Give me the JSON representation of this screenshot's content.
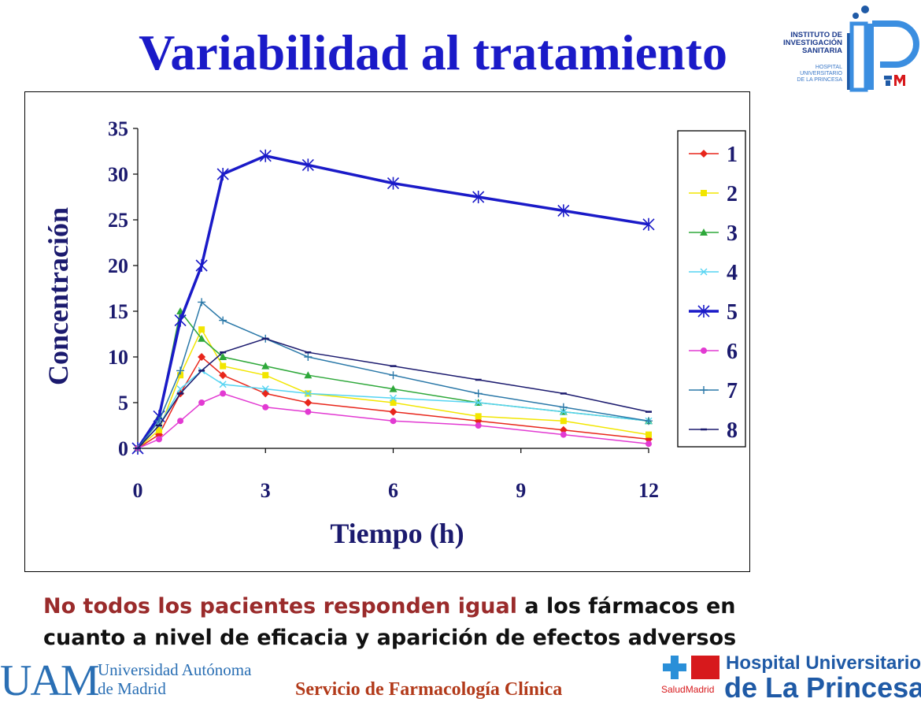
{
  "slide": {
    "title": "Variabilidad al tratamiento",
    "bottom_highlight": "No todos los pacientes responden igual",
    "bottom_rest_1": " a los fármacos en",
    "bottom_line_2": "cuanto a nivel de eficacia y aparición de efectos adversos",
    "footer_center": "Servicio de Farmacología Clínica"
  },
  "logos": {
    "ip_lines": [
      "INSTITUTO DE",
      "INVESTIGACIÓN",
      "SANITARIA"
    ],
    "ip_sub_lines": [
      "HOSPITAL",
      "UNIVERSITARIO",
      "DE LA PRINCESA"
    ],
    "uam_mark": "UAM",
    "uam_line_1": "Universidad Autónoma",
    "uam_line_2": "de Madrid",
    "princesa_line_1": "Hospital Universitario",
    "princesa_line_2": "de La Princesa",
    "salud_madrid": "SaludMadrid"
  },
  "chart_data": {
    "type": "line",
    "title": "",
    "xlabel": "Tiempo (h)",
    "ylabel": "Concentración",
    "xlim": [
      0,
      12
    ],
    "ylim": [
      0,
      35
    ],
    "xticks": [
      0,
      3,
      6,
      9,
      12
    ],
    "yticks": [
      0,
      5,
      10,
      15,
      20,
      25,
      30,
      35
    ],
    "legend_position": "right",
    "series": [
      {
        "name": "1",
        "color": "#e8261b",
        "marker": "diamond",
        "x": [
          0,
          0.5,
          1,
          1.5,
          2,
          3,
          4,
          6,
          8,
          10,
          12
        ],
        "y": [
          0,
          1.5,
          6,
          10,
          8,
          6,
          5,
          4,
          3,
          2,
          1
        ]
      },
      {
        "name": "2",
        "color": "#f2e600",
        "marker": "square",
        "x": [
          0,
          0.5,
          1,
          1.5,
          2,
          3,
          4,
          6,
          8,
          10,
          12
        ],
        "y": [
          0,
          2,
          8,
          13,
          9,
          8,
          6,
          5,
          3.5,
          3,
          1.5
        ]
      },
      {
        "name": "3",
        "color": "#2ea83a",
        "marker": "triangle",
        "x": [
          0,
          0.5,
          1,
          1.5,
          2,
          3,
          4,
          6,
          8,
          10,
          12
        ],
        "y": [
          0,
          3.5,
          15,
          12,
          10,
          9,
          8,
          6.5,
          5,
          4,
          3
        ]
      },
      {
        "name": "4",
        "color": "#55d4f2",
        "marker": "x",
        "x": [
          0,
          0.5,
          1,
          1.5,
          2,
          3,
          4,
          6,
          8,
          10,
          12
        ],
        "y": [
          0,
          2.5,
          6.5,
          8.5,
          7,
          6.5,
          6,
          5.5,
          5,
          4,
          3
        ]
      },
      {
        "name": "5",
        "color": "#1a1ac8",
        "marker": "asterisk",
        "x": [
          0,
          0.5,
          1,
          1.5,
          2,
          3,
          4,
          6,
          8,
          10,
          12
        ],
        "y": [
          0,
          3.5,
          14,
          20,
          30,
          32,
          31,
          29,
          27.5,
          26,
          24.5
        ]
      },
      {
        "name": "6",
        "color": "#e23ad2",
        "marker": "circle",
        "x": [
          0,
          0.5,
          1,
          1.5,
          2,
          3,
          4,
          6,
          8,
          10,
          12
        ],
        "y": [
          0,
          1,
          3,
          5,
          6,
          4.5,
          4,
          3,
          2.5,
          1.5,
          0.5
        ]
      },
      {
        "name": "7",
        "color": "#2a78a8",
        "marker": "plus",
        "x": [
          0,
          0.5,
          1,
          1.5,
          2,
          3,
          4,
          6,
          8,
          10,
          12
        ],
        "y": [
          0,
          3,
          8.5,
          16,
          14,
          12,
          10,
          8,
          6,
          4.5,
          3
        ]
      },
      {
        "name": "8",
        "color": "#1b1a6e",
        "marker": "dash",
        "x": [
          0,
          0.5,
          1,
          1.5,
          2,
          3,
          4,
          6,
          8,
          10,
          12
        ],
        "y": [
          0,
          2.5,
          6,
          8.5,
          10.5,
          12,
          10.5,
          9,
          7.5,
          6,
          4
        ]
      }
    ]
  }
}
